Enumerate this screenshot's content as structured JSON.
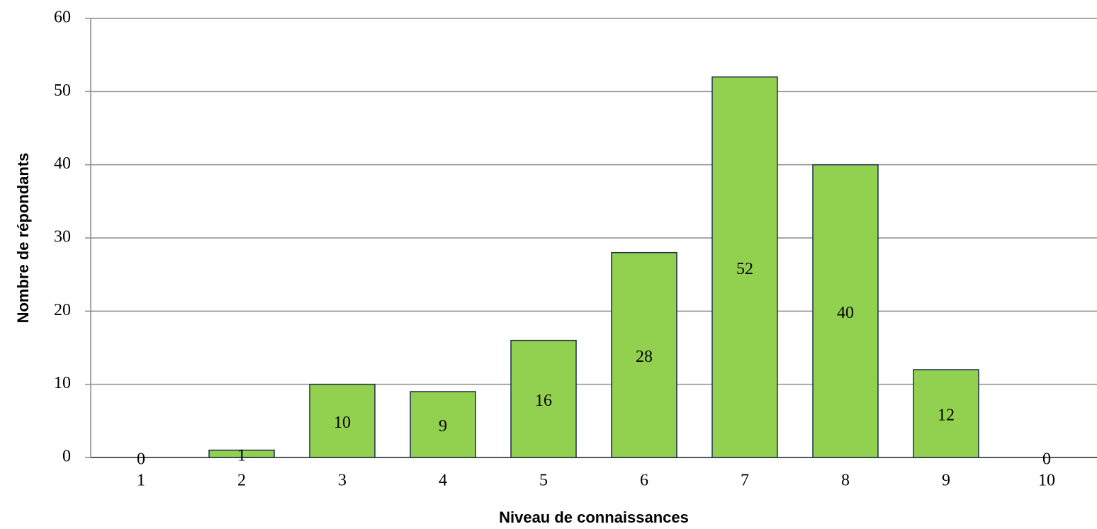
{
  "chart_data": {
    "type": "bar",
    "categories": [
      "1",
      "2",
      "3",
      "4",
      "5",
      "6",
      "7",
      "8",
      "9",
      "10"
    ],
    "values": [
      0,
      1,
      10,
      9,
      16,
      28,
      52,
      40,
      12,
      0
    ],
    "color": "#92d050",
    "xlabel": "Niveau de connaissances",
    "ylabel": "Nombre de répondants",
    "ylim": [
      0,
      60
    ],
    "yticks": [
      0,
      10,
      20,
      30,
      40,
      50,
      60
    ],
    "grid": true,
    "data_labels": true
  }
}
